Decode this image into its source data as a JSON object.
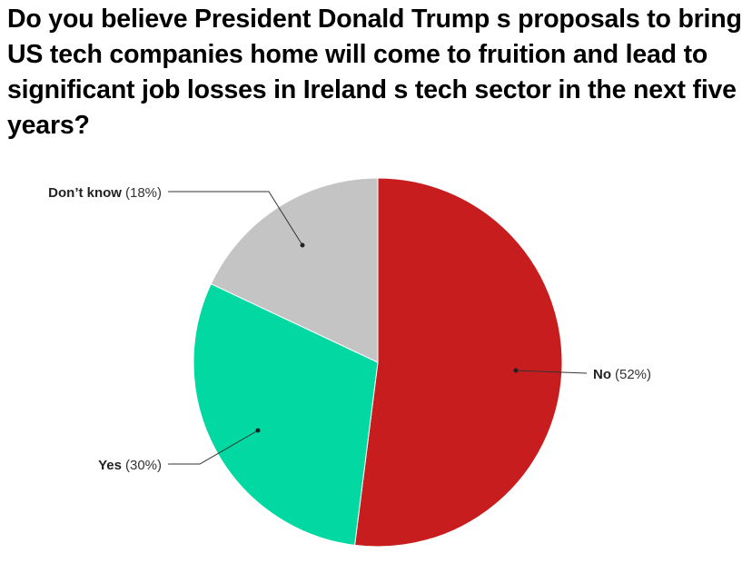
{
  "chart_data": {
    "type": "pie",
    "title": "Do you believe President Donald Trump s proposals to bring US tech companies home will come to fruition and lead to significant job losses in Ireland s tech sector in the next five years?",
    "slices": [
      {
        "label": "No",
        "value": 52,
        "value_text": "(52%)",
        "color": "#c81d1e"
      },
      {
        "label": "Yes",
        "value": 30,
        "value_text": "(30%)",
        "color": "#02d9a2"
      },
      {
        "label": "Don’t know",
        "value": 18,
        "value_text": "(18%)",
        "color": "#c4c4c4"
      }
    ],
    "legend": "none"
  }
}
